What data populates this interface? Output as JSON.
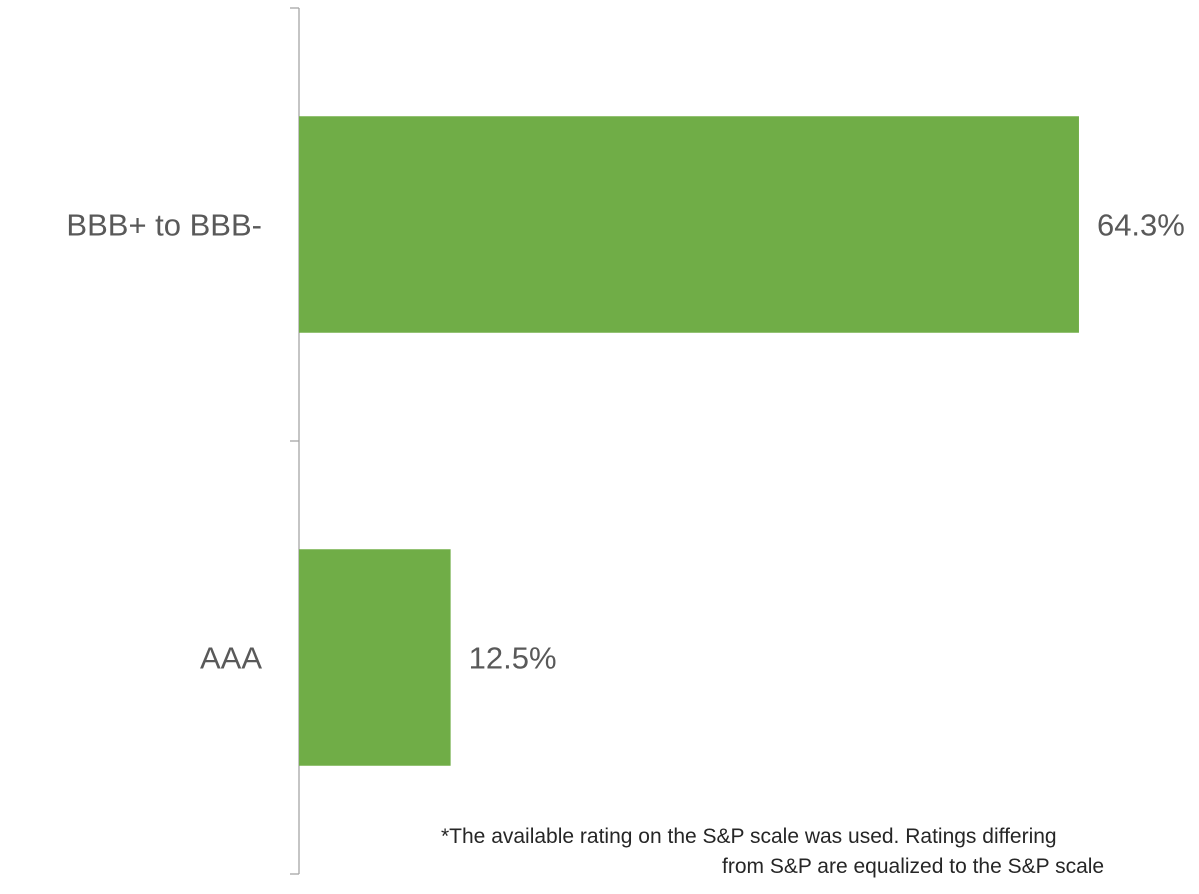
{
  "chart_data": {
    "type": "bar",
    "orientation": "horizontal",
    "categories": [
      "BBB+ to BBB-",
      "AAA"
    ],
    "values": [
      64.3,
      12.5
    ],
    "data_labels": [
      "64.3%",
      "12.5%"
    ],
    "xlim": [
      0,
      75
    ],
    "unit": "%",
    "bar_color": "#70AD47",
    "axis_color": "#A6A6A6",
    "grid": false,
    "legend": "none",
    "title": "",
    "xlabel": "",
    "ylabel": ""
  },
  "footnote": {
    "line1": "*The available rating on the S&P scale was used. Ratings differing",
    "line2": "from S&P are equalized to the S&P scale"
  }
}
